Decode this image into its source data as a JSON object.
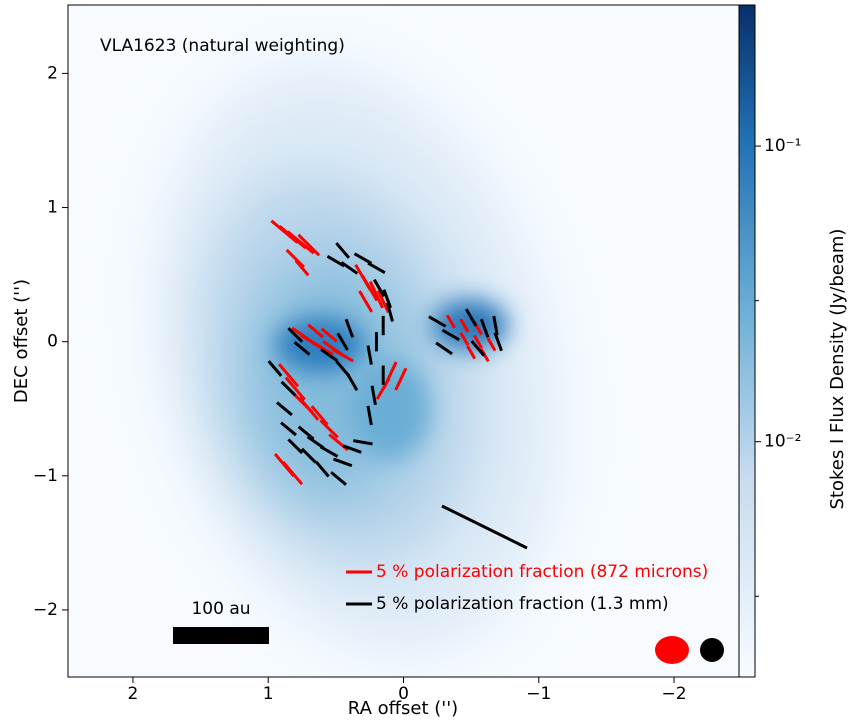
{
  "chart_data": {
    "type": "quiver",
    "annotation": "VLA1623 (natural weighting)",
    "xlabel": "RA offset ('')",
    "ylabel": "DEC offset ('')",
    "xlim": [
      2.48,
      -2.48
    ],
    "ylim": [
      -2.5,
      2.51
    ],
    "xticks": [
      2,
      1,
      0,
      {
        "value": -1,
        "label": "−1"
      },
      {
        "value": -2,
        "label": "−2"
      }
    ],
    "yticks": [
      {
        "value": -2,
        "label": "−2"
      },
      {
        "value": -1,
        "label": "−1"
      },
      0,
      1,
      2
    ],
    "colorbar": {
      "label": "Stokes I Flux Density (Jy/beam)",
      "clim": [
        0.0016,
        0.3
      ],
      "log": true,
      "ticks": [
        {
          "value": 0.1,
          "label": "10⁻¹"
        },
        {
          "value": 0.01,
          "label": "10⁻²"
        }
      ],
      "minor_ticks": [
        0.03,
        0.003
      ]
    },
    "scale_bar_label": "100 au",
    "series": [
      {
        "name": "5 % polarization fraction (872 microns)",
        "color": "#ff0000",
        "x": [
          0.88,
          0.82,
          0.76,
          0.7,
          0.8,
          0.75,
          0.3,
          0.25,
          0.2,
          0.15,
          0.28,
          0.75,
          0.68,
          0.6,
          0.52,
          0.45,
          0.65,
          0.55,
          0.85,
          0.8,
          0.75,
          0.7,
          0.62,
          0.55,
          0.48,
          0.88,
          0.82,
          0.1,
          0.02,
          0.15,
          -0.35,
          -0.45,
          -0.55,
          -0.45,
          -0.55,
          -0.65,
          -0.6,
          -0.5
        ],
        "y": [
          0.82,
          0.78,
          0.74,
          0.72,
          0.62,
          0.55,
          0.48,
          0.4,
          0.35,
          0.3,
          0.3,
          0.05,
          0.0,
          -0.05,
          -0.05,
          -0.1,
          0.08,
          0.05,
          -0.25,
          -0.35,
          -0.45,
          -0.5,
          -0.55,
          -0.65,
          -0.75,
          -0.92,
          -0.98,
          -0.25,
          -0.28,
          -0.35,
          0.15,
          0.12,
          0.1,
          0.02,
          0.0,
          -0.02,
          -0.1,
          -0.08
        ],
        "pa": [
          50,
          50,
          50,
          45,
          45,
          40,
          30,
          30,
          25,
          25,
          30,
          55,
          60,
          60,
          55,
          60,
          50,
          50,
          40,
          40,
          45,
          40,
          40,
          45,
          50,
          40,
          40,
          155,
          155,
          150,
          30,
          30,
          30,
          30,
          30,
          30,
          30,
          30
        ],
        "frac": [
          7,
          7,
          7,
          6,
          5,
          4,
          6,
          6,
          6,
          5,
          5,
          5,
          5,
          5,
          5,
          5,
          4,
          4,
          6,
          6,
          6,
          6,
          5,
          5,
          5,
          6,
          6,
          6,
          5,
          5,
          3,
          3,
          3,
          3,
          3,
          3,
          3,
          3
        ]
      },
      {
        "name": "5 % polarization fraction (1.3 mm)",
        "color": "#000000",
        "x": [
          0.5,
          0.45,
          0.4,
          0.3,
          0.2,
          0.18,
          0.12,
          0.1,
          0.15,
          0.2,
          0.25,
          0.15,
          0.22,
          0.25,
          0.95,
          0.85,
          0.88,
          0.85,
          0.8,
          0.7,
          0.72,
          0.65,
          0.55,
          0.45,
          0.6,
          0.48,
          0.38,
          0.3,
          0.8,
          0.75,
          0.55,
          0.45,
          0.4,
          0.45,
          0.38,
          -0.25,
          -0.35,
          -0.3,
          -0.5,
          -0.6,
          -0.68,
          -0.7,
          -0.55
        ],
        "y": [
          0.6,
          0.68,
          0.55,
          0.62,
          0.55,
          0.4,
          0.32,
          0.22,
          0.12,
          0.0,
          -0.1,
          -0.25,
          -0.4,
          -0.55,
          -0.2,
          -0.35,
          -0.5,
          -0.65,
          -0.78,
          -0.85,
          -0.68,
          -0.75,
          -0.82,
          -0.9,
          -0.95,
          -1.02,
          -0.8,
          -0.75,
          0.05,
          -0.05,
          -0.1,
          0.0,
          0.1,
          -0.2,
          -0.3,
          0.15,
          0.05,
          -0.05,
          0.18,
          0.1,
          0.12,
          0.0,
          -0.05
        ],
        "pa": [
          60,
          40,
          55,
          60,
          60,
          30,
          20,
          15,
          0,
          0,
          10,
          0,
          10,
          10,
          40,
          45,
          50,
          50,
          45,
          45,
          50,
          55,
          60,
          70,
          40,
          50,
          70,
          80,
          45,
          50,
          55,
          30,
          20,
          40,
          30,
          60,
          60,
          55,
          30,
          20,
          10,
          20,
          40
        ],
        "frac": [
          4,
          4,
          4,
          4,
          4,
          4,
          4,
          4,
          4,
          4,
          4,
          4,
          4,
          4,
          4,
          4,
          4,
          4,
          4,
          4,
          4,
          4,
          4,
          4,
          4,
          4,
          4,
          4,
          4,
          4,
          4,
          4,
          4,
          4,
          4,
          4,
          4,
          4,
          4,
          4,
          4,
          4,
          4
        ]
      }
    ]
  }
}
